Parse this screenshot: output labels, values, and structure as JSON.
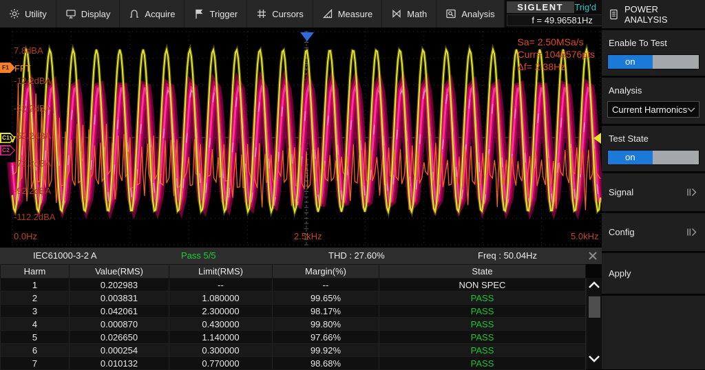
{
  "menu": {
    "items": [
      {
        "label": "Utility"
      },
      {
        "label": "Display"
      },
      {
        "label": "Acquire"
      },
      {
        "label": "Trigger"
      },
      {
        "label": "Cursors"
      },
      {
        "label": "Measure"
      },
      {
        "label": "Math"
      },
      {
        "label": "Analysis"
      }
    ]
  },
  "logo": {
    "brand": "SIGLENT",
    "trigger_status": "Trig'd",
    "freq_readout": "f = 49.96581Hz"
  },
  "panel": {
    "title": "POWER ANALYSIS",
    "enable_label": "Enable To Test",
    "enable_state": "on",
    "analysis_label": "Analysis",
    "analysis_value": "Current Harmonics",
    "test_state_label": "Test State",
    "test_state": "on",
    "signal_label": "Signal",
    "config_label": "Config",
    "apply_label": "Apply"
  },
  "waveform": {
    "db_labels": [
      "7.8dBA",
      "-12.2dBA",
      "-32.2dBA",
      "-52.2dBA",
      "-72.2dBA",
      "-92.2dBA",
      "-112.2dBA"
    ],
    "fft_label": "FFT",
    "f1": "F1",
    "c1": "C1",
    "c1_unit": "V",
    "c2": "C2",
    "acq_lines": [
      "Sa=  2.50MSa/s",
      "Curr= 1048576pts",
      "Δf=  2.38Hz"
    ],
    "freq_labels": [
      "0.0Hz",
      "2.5kHz",
      "5.0kHz"
    ],
    "colors": {
      "yellow": "#e6e332",
      "yellow_glow": "#8a8a14",
      "magenta_dark": "#7c0040",
      "magenta": "#c4005f",
      "magenta_core": "#ff2fa4",
      "magenta_hi": "#ff9ad2",
      "orange": "#f06424",
      "grid": "#303030",
      "axis": "#5a5a5a",
      "trigger_blue": "#2f6be0"
    },
    "params": {
      "cycles": 25.2,
      "harmonics": 100
    }
  },
  "status": {
    "standard": "IEC61000-3-2 A",
    "pass_text": "Pass 5/5",
    "thd": "THD : 27.60%",
    "freq": "Freq : 50.04Hz"
  },
  "table": {
    "columns": [
      "Harm",
      "Value(RMS)",
      "Limit(RMS)",
      "Margin(%)",
      "State"
    ],
    "rows": [
      [
        "1",
        "0.202983",
        "--",
        "--",
        "NON SPEC"
      ],
      [
        "2",
        "0.003831",
        "1.080000",
        "99.65%",
        "PASS"
      ],
      [
        "3",
        "0.042061",
        "2.300000",
        "98.17%",
        "PASS"
      ],
      [
        "4",
        "0.000870",
        "0.430000",
        "99.80%",
        "PASS"
      ],
      [
        "5",
        "0.026650",
        "1.140000",
        "97.66%",
        "PASS"
      ],
      [
        "6",
        "0.000254",
        "0.300000",
        "99.92%",
        "PASS"
      ],
      [
        "7",
        "0.010132",
        "0.770000",
        "98.68%",
        "PASS"
      ]
    ]
  }
}
